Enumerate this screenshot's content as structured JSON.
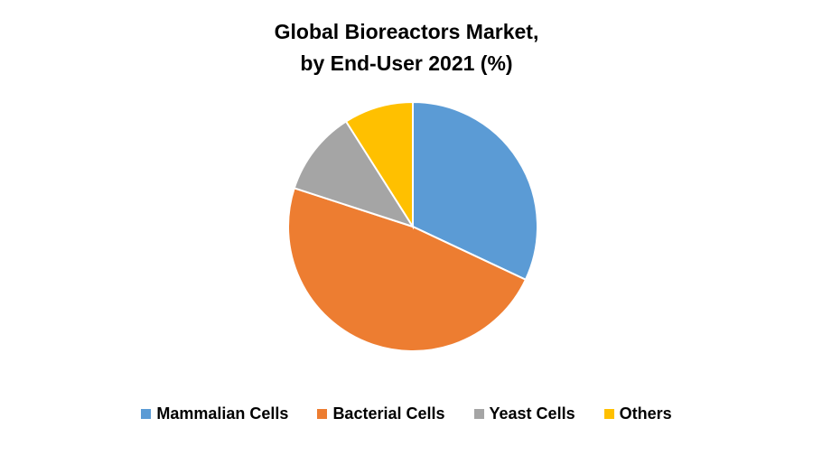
{
  "chart_data": {
    "type": "pie",
    "title_lines": [
      "Global Bioreactors Market,",
      "by End-User 2021 (%)"
    ],
    "categories": [
      "Mammalian Cells",
      "Bacterial Cells",
      "Yeast Cells",
      "Others"
    ],
    "values": [
      32,
      48,
      11,
      9
    ],
    "colors": [
      "#5B9BD5",
      "#ED7D31",
      "#A5A5A5",
      "#FFC000"
    ],
    "start_angle": "top, clockwise",
    "legend_position": "bottom"
  }
}
